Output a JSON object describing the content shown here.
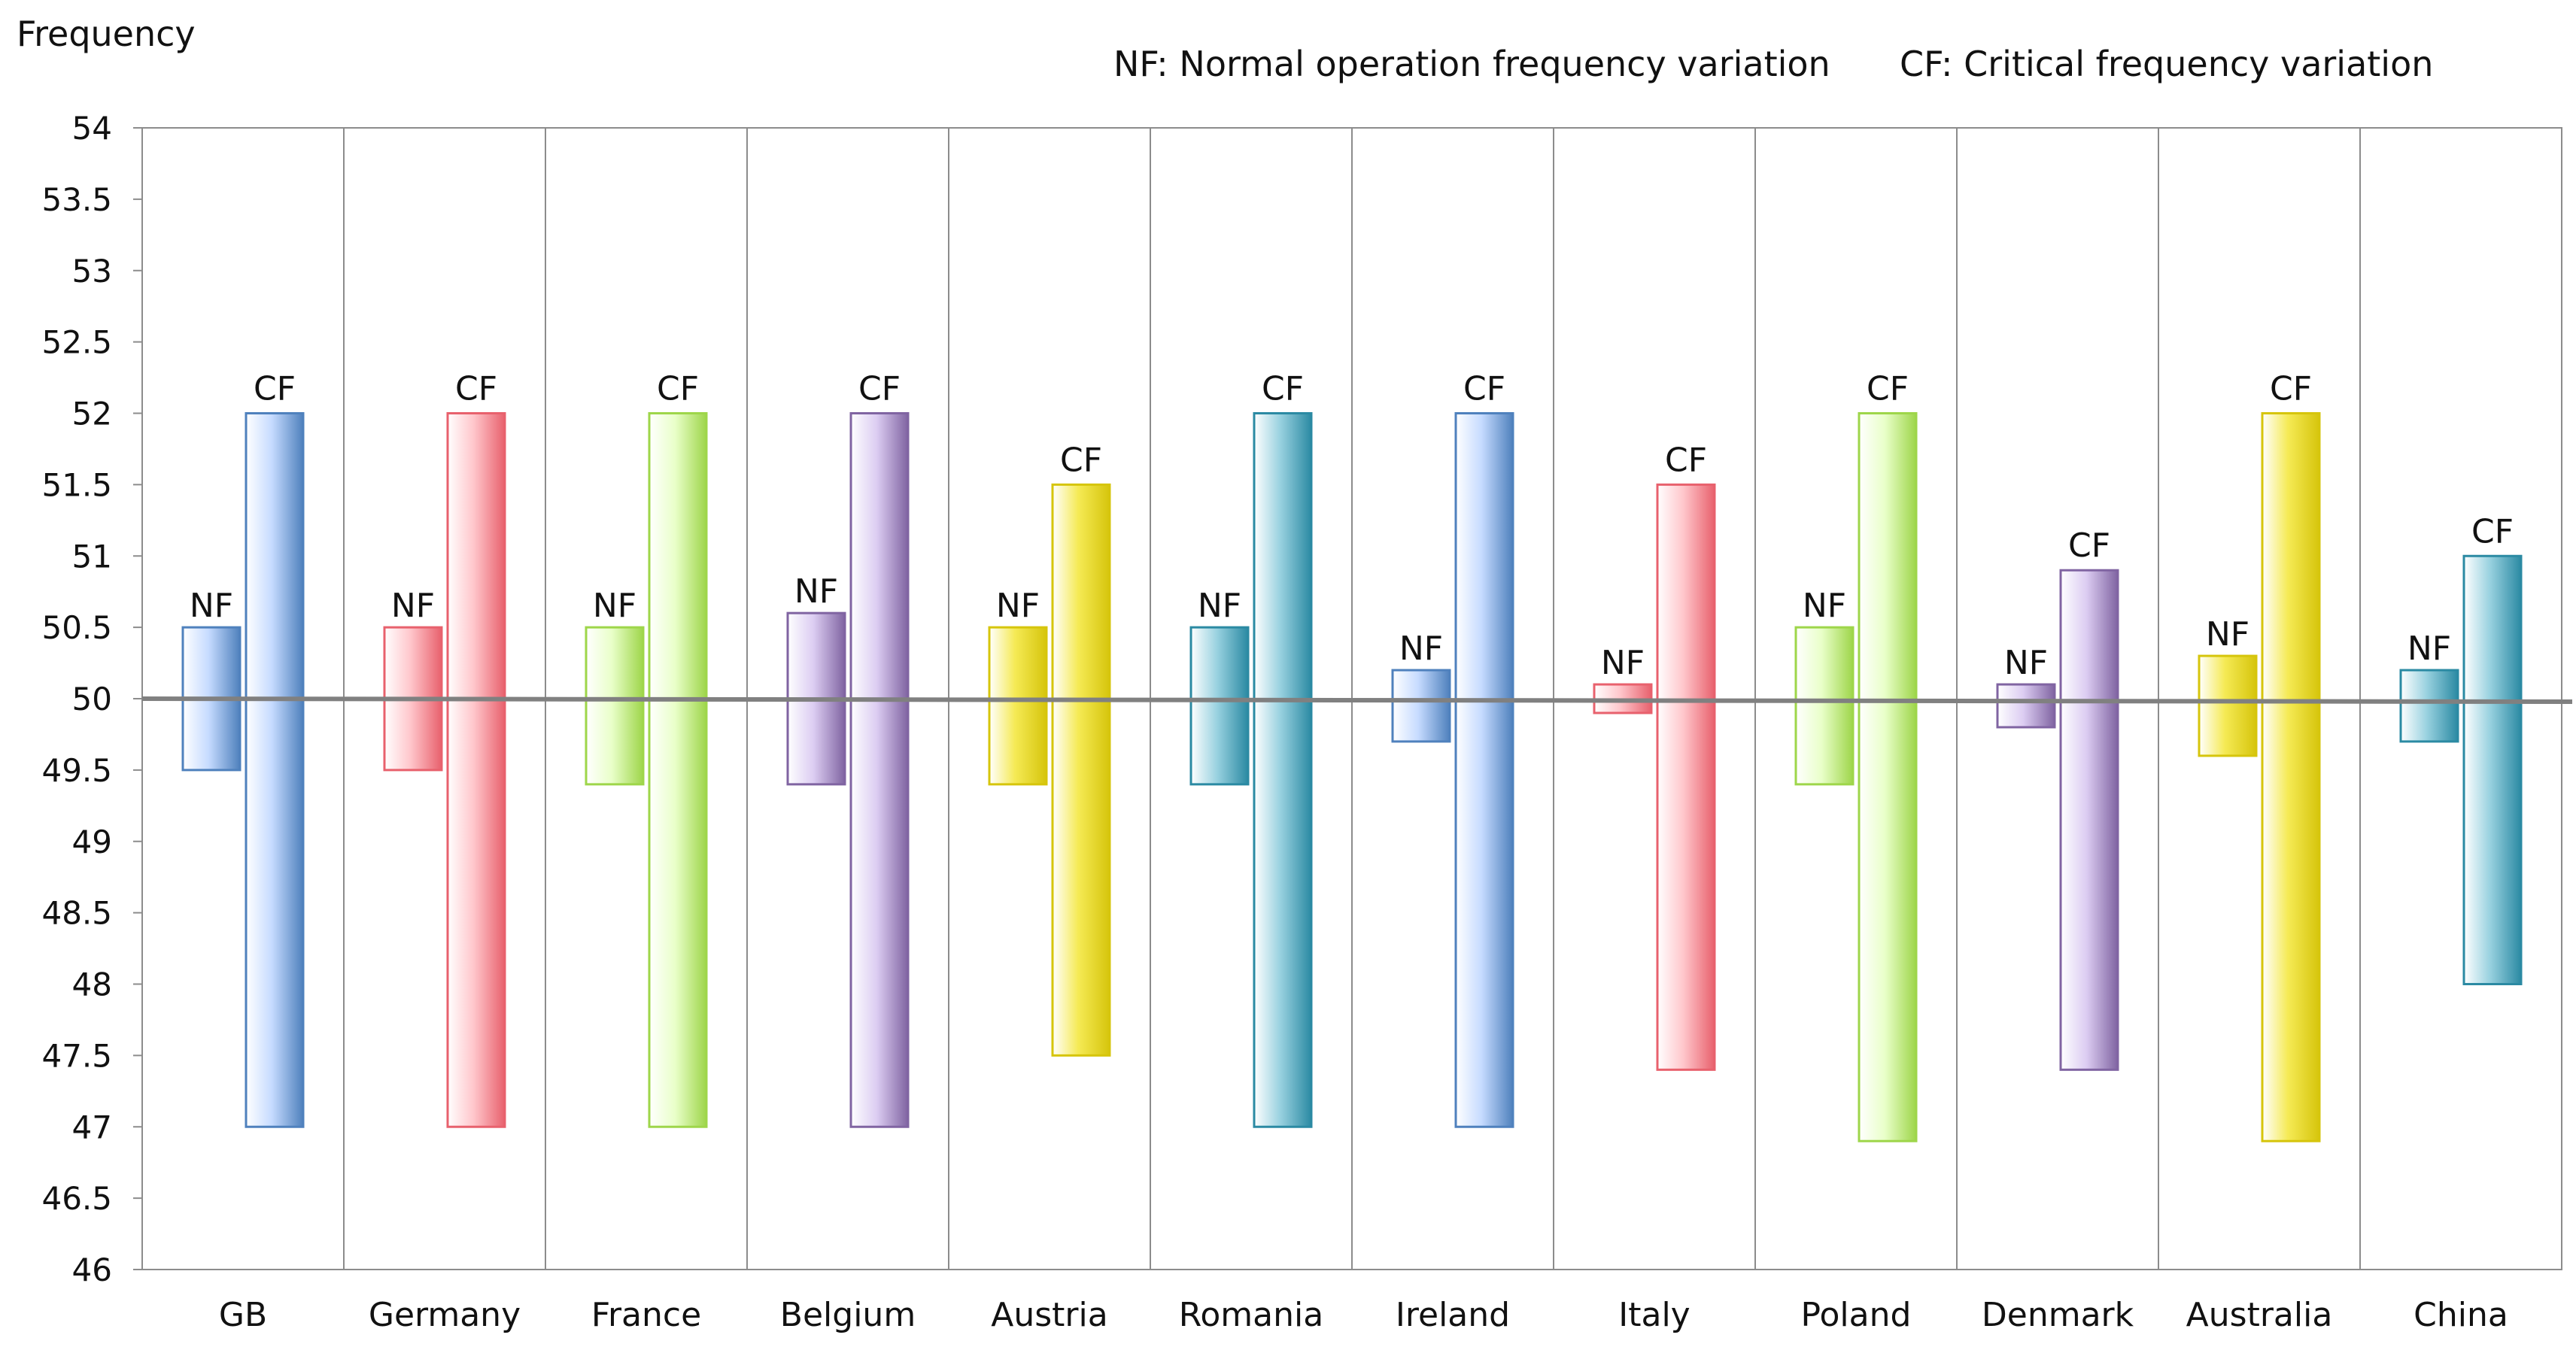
{
  "chart_data": {
    "type": "bar",
    "subtype": "floating-range",
    "ylabel": "Frequency",
    "ylim": [
      46,
      54
    ],
    "yticks": [
      46,
      46.5,
      47,
      47.5,
      48,
      48.5,
      49,
      49.5,
      50,
      50.5,
      51,
      51.5,
      52,
      52.5,
      53,
      53.5,
      54
    ],
    "reference_line": 50,
    "legend": [
      {
        "key": "NF",
        "text": "NF: Normal operation frequency variation"
      },
      {
        "key": "CF",
        "text": "CF: Critical frequency variation"
      }
    ],
    "series_labels": {
      "nf": "NF",
      "cf": "CF"
    },
    "categories": [
      "GB",
      "Germany",
      "France",
      "Belgium",
      "Austria",
      "Romania",
      "Ireland",
      "Italy",
      "Poland",
      "Denmark",
      "Australia",
      "China"
    ],
    "nf": [
      [
        49.5,
        50.5
      ],
      [
        49.5,
        50.5
      ],
      [
        49.4,
        50.5
      ],
      [
        49.4,
        50.6
      ],
      [
        49.4,
        50.5
      ],
      [
        49.4,
        50.5
      ],
      [
        49.7,
        50.2
      ],
      [
        49.9,
        50.1
      ],
      [
        49.4,
        50.5
      ],
      [
        49.8,
        50.1
      ],
      [
        49.6,
        50.3
      ],
      [
        49.7,
        50.2
      ]
    ],
    "cf": [
      [
        47,
        52
      ],
      [
        47,
        52
      ],
      [
        47,
        52
      ],
      [
        47,
        52
      ],
      [
        47.5,
        51.5
      ],
      [
        47,
        52
      ],
      [
        47,
        52
      ],
      [
        47.4,
        51.5
      ],
      [
        46.9,
        52
      ],
      [
        47.4,
        50.9
      ],
      [
        46.9,
        52
      ],
      [
        48,
        51
      ]
    ],
    "colors": [
      "#4f81bd",
      "#e8616d",
      "#9ed64a",
      "#8064a2",
      "#d6c50c",
      "#2b8aa3",
      "#4f81bd",
      "#e8616d",
      "#9ed64a",
      "#8064a2",
      "#d6c50c",
      "#2b8aa3"
    ],
    "fills": [
      "#c6dbff",
      "#ffc7cc",
      "#e9ffc9",
      "#dccdf2",
      "#f5ea55",
      "#9ad2e0",
      "#c6dbff",
      "#ffc7cc",
      "#e9ffc9",
      "#dccdf2",
      "#f5ea55",
      "#9ad2e0"
    ]
  }
}
